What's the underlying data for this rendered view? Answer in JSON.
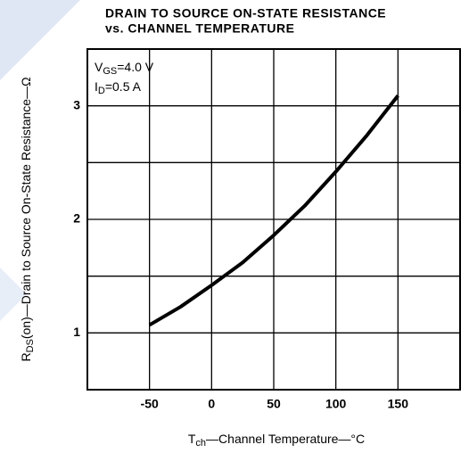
{
  "chart_data": {
    "type": "line",
    "title": [
      "DRAIN TO SOURCE ON-STATE RESISTANCE",
      "vs. CHANNEL TEMPERATURE"
    ],
    "x_label": [
      "T",
      "ch",
      "—Channel Temperature—°C"
    ],
    "y_label": [
      "R",
      "DS",
      "(on)—Drain to Source On-State Resistance—Ω"
    ],
    "annotations": [
      [
        "V",
        "GS",
        "=4.0 V"
      ],
      [
        "I",
        "D",
        "=0.5 A"
      ]
    ],
    "x": [
      -50,
      -25,
      0,
      25,
      50,
      75,
      100,
      125,
      150
    ],
    "series": [
      {
        "color": "#000000",
        "values": [
          1.07,
          1.23,
          1.42,
          1.62,
          1.86,
          2.12,
          2.42,
          2.74,
          3.09
        ]
      }
    ],
    "xlim": [
      -100,
      200
    ],
    "xticks": [
      -50,
      0,
      50,
      100,
      150
    ],
    "ylim": [
      0.5,
      3.5
    ],
    "yticks": [
      1,
      2,
      3
    ],
    "minor_yticks": [
      1.5,
      2.5
    ],
    "grid": true
  }
}
